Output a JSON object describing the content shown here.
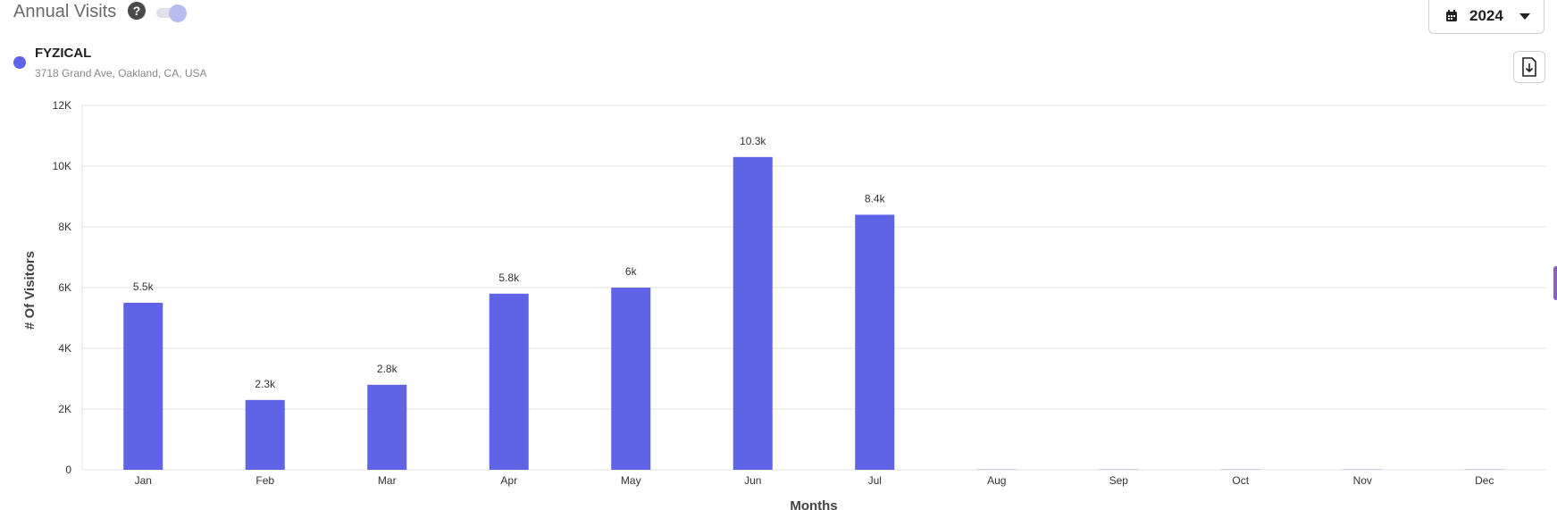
{
  "header": {
    "title": "Annual Visits",
    "help_icon": "question-circle-icon",
    "toggle_on": true
  },
  "year_select": {
    "icon": "calendar-icon",
    "value": "2024"
  },
  "location": {
    "name": "FYZICAL",
    "address": "3718 Grand Ave, Oakland, CA, USA",
    "color": "#5f63e6"
  },
  "download_icon": "file-download-icon",
  "chart_data": {
    "type": "bar",
    "categories": [
      "Jan",
      "Feb",
      "Mar",
      "Apr",
      "May",
      "Jun",
      "Jul",
      "Aug",
      "Sep",
      "Oct",
      "Nov",
      "Dec"
    ],
    "series": [
      {
        "name": "FYZICAL",
        "values": [
          5500,
          2300,
          2800,
          5800,
          6000,
          10300,
          8400,
          0,
          0,
          0,
          0,
          0
        ],
        "labels": [
          "5.5k",
          "2.3k",
          "2.8k",
          "5.8k",
          "6k",
          "10.3k",
          "8.4k",
          "",
          "",
          "",
          "",
          ""
        ],
        "color": "#5f63e6"
      }
    ],
    "xlabel": "Months",
    "ylabel": "# Of Visitors",
    "ylim": [
      0,
      12000
    ],
    "yticks": [
      0,
      2000,
      4000,
      6000,
      8000,
      10000,
      12000
    ],
    "ytick_labels": [
      "0",
      "2K",
      "4K",
      "6K",
      "8K",
      "10K",
      "12K"
    ],
    "grid": true,
    "legend": "top-left"
  }
}
